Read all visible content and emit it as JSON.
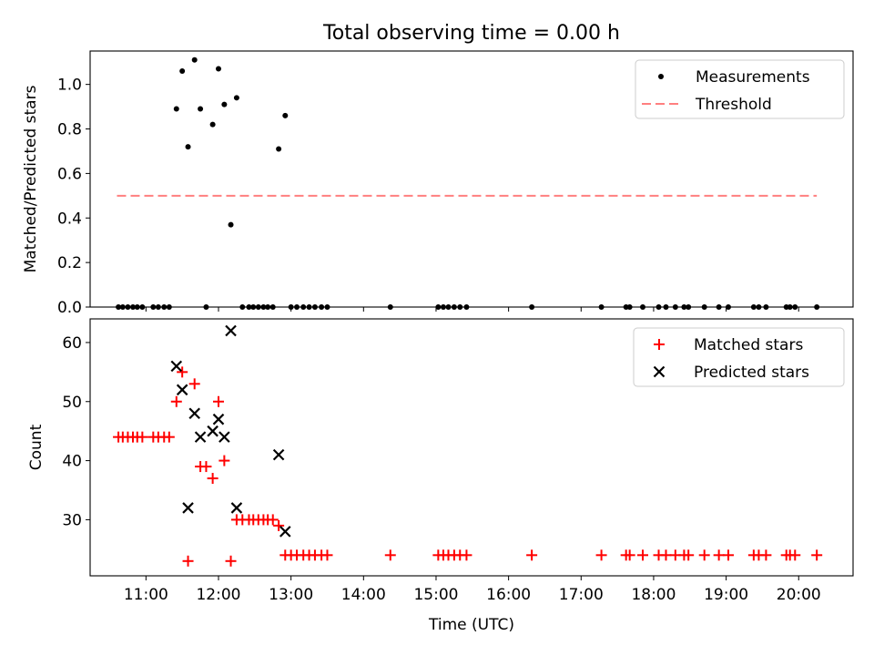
{
  "title": "Total observing time = 0.00 h",
  "chart_data": [
    {
      "type": "scatter",
      "ylabel": "Matched/Predicted stars",
      "xlim_hours": [
        10.23,
        20.75
      ],
      "ylim": [
        0,
        1.15
      ],
      "yticks": [
        "0.0",
        "0.2",
        "0.4",
        "0.6",
        "0.8",
        "1.0"
      ],
      "legend_position": "top-right",
      "legend": [
        "Measurements",
        "Threshold"
      ],
      "threshold": {
        "name": "Threshold",
        "value": 0.5,
        "x_range": [
          10.6,
          20.25
        ],
        "color": "#ff7f7f"
      },
      "series": [
        {
          "name": "Measurements",
          "color": "#000000",
          "x": [
            11.42,
            11.5,
            11.58,
            11.67,
            11.75,
            11.92,
            12.0,
            12.08,
            12.17,
            12.25,
            12.83,
            12.92,
            10.62,
            10.68,
            10.75,
            10.82,
            10.88,
            10.95,
            11.1,
            11.17,
            11.25,
            11.32,
            11.83,
            12.33,
            12.42,
            12.48,
            12.55,
            12.62,
            12.68,
            12.75,
            13.0,
            13.08,
            13.17,
            13.25,
            13.33,
            13.42,
            13.5,
            14.37,
            15.03,
            15.1,
            15.17,
            15.25,
            15.33,
            15.42,
            16.32,
            17.28,
            17.62,
            17.67,
            17.85,
            18.07,
            18.17,
            18.3,
            18.42,
            18.48,
            18.7,
            18.9,
            19.03,
            19.38,
            19.45,
            19.55,
            19.83,
            19.88,
            19.95,
            20.25
          ],
          "y": [
            0.89,
            1.06,
            0.72,
            1.11,
            0.89,
            0.82,
            1.07,
            0.91,
            0.37,
            0.94,
            0.71,
            0.86,
            0,
            0,
            0,
            0,
            0,
            0,
            0,
            0,
            0,
            0,
            0,
            0,
            0,
            0,
            0,
            0,
            0,
            0,
            0,
            0,
            0,
            0,
            0,
            0,
            0,
            0,
            0,
            0,
            0,
            0,
            0,
            0,
            0,
            0,
            0,
            0,
            0,
            0,
            0,
            0,
            0,
            0,
            0,
            0,
            0,
            0,
            0,
            0,
            0,
            0,
            0,
            0
          ]
        }
      ]
    },
    {
      "type": "scatter",
      "xlabel": "Time (UTC)",
      "ylabel": "Count",
      "xlim_hours": [
        10.23,
        20.75
      ],
      "ylim": [
        20.5,
        64
      ],
      "yticks": [
        "30",
        "40",
        "50",
        "60"
      ],
      "xticks": [
        "11:00",
        "12:00",
        "13:00",
        "14:00",
        "15:00",
        "16:00",
        "17:00",
        "18:00",
        "19:00",
        "20:00"
      ],
      "legend_position": "top-right",
      "legend": [
        "Matched stars",
        "Predicted stars"
      ],
      "series": [
        {
          "name": "Matched stars",
          "marker": "plus",
          "color": "#ff0000",
          "x": [
            10.62,
            10.68,
            10.75,
            10.82,
            10.88,
            10.95,
            11.1,
            11.17,
            11.25,
            11.32,
            11.42,
            11.5,
            11.58,
            11.67,
            11.75,
            11.83,
            11.92,
            12.0,
            12.08,
            12.17,
            12.25,
            12.33,
            12.42,
            12.48,
            12.55,
            12.62,
            12.68,
            12.75,
            12.83,
            12.92,
            13.0,
            13.08,
            13.17,
            13.25,
            13.33,
            13.42,
            13.5,
            14.37,
            15.03,
            15.1,
            15.17,
            15.25,
            15.33,
            15.42,
            16.32,
            17.28,
            17.62,
            17.67,
            17.85,
            18.07,
            18.17,
            18.3,
            18.42,
            18.48,
            18.7,
            18.9,
            19.03,
            19.38,
            19.45,
            19.55,
            19.83,
            19.88,
            19.95,
            20.25
          ],
          "y": [
            44,
            44,
            44,
            44,
            44,
            44,
            44,
            44,
            44,
            44,
            50,
            55,
            23,
            53,
            39,
            39,
            37,
            50,
            40,
            23,
            30,
            30,
            30,
            30,
            30,
            30,
            30,
            30,
            29,
            24,
            24,
            24,
            24,
            24,
            24,
            24,
            24,
            24,
            24,
            24,
            24,
            24,
            24,
            24,
            24,
            24,
            24,
            24,
            24,
            24,
            24,
            24,
            24,
            24,
            24,
            24,
            24,
            24,
            24,
            24,
            24,
            24,
            24,
            24
          ]
        },
        {
          "name": "Predicted stars",
          "marker": "x",
          "color": "#000000",
          "x": [
            11.42,
            11.5,
            11.58,
            11.67,
            11.75,
            11.92,
            12.0,
            12.08,
            12.17,
            12.25,
            12.83,
            12.92
          ],
          "y": [
            56,
            52,
            32,
            48,
            44,
            45,
            47,
            44,
            62,
            32,
            41,
            28
          ]
        }
      ]
    }
  ]
}
